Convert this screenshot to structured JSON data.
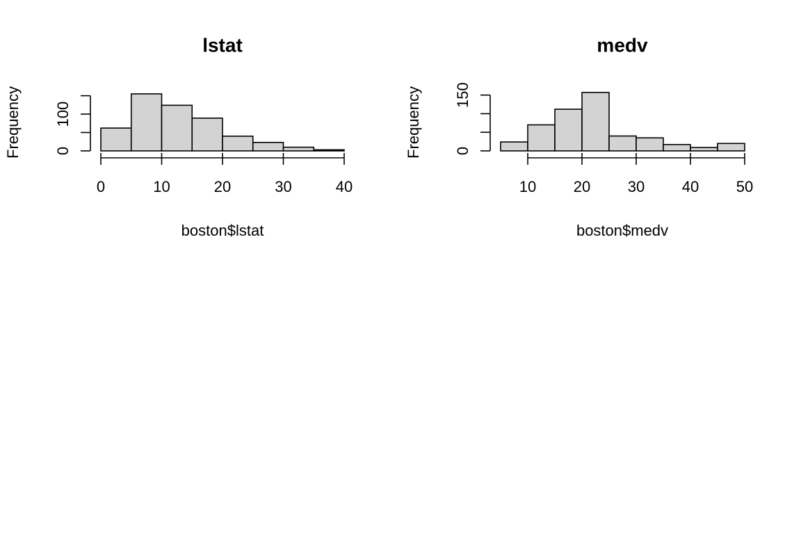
{
  "chart_data": [
    {
      "type": "bar",
      "title": "lstat",
      "xlabel": "boston$lstat",
      "ylabel": "Frequency",
      "bins": [
        {
          "from": 0,
          "to": 5,
          "count": 62
        },
        {
          "from": 5,
          "to": 10,
          "count": 155
        },
        {
          "from": 10,
          "to": 15,
          "count": 124
        },
        {
          "from": 15,
          "to": 20,
          "count": 89
        },
        {
          "from": 20,
          "to": 25,
          "count": 40
        },
        {
          "from": 25,
          "to": 30,
          "count": 23
        },
        {
          "from": 30,
          "to": 35,
          "count": 10
        },
        {
          "from": 35,
          "to": 40,
          "count": 3
        }
      ],
      "xlim": [
        0,
        40
      ],
      "ylim": [
        0,
        155
      ],
      "x_ticks": [
        0,
        10,
        20,
        30,
        40
      ],
      "x_tick_labels": [
        "0",
        "10",
        "20",
        "30",
        "40"
      ],
      "y_ticks": [
        0,
        50,
        100,
        150
      ],
      "y_tick_labels": [
        "0",
        "",
        "100",
        ""
      ],
      "bar_fill": "#d3d3d3",
      "grid": false
    },
    {
      "type": "bar",
      "title": "medv",
      "xlabel": "boston$medv",
      "ylabel": "Frequency",
      "bins": [
        {
          "from": 5,
          "to": 10,
          "count": 24
        },
        {
          "from": 10,
          "to": 15,
          "count": 70
        },
        {
          "from": 15,
          "to": 20,
          "count": 112
        },
        {
          "from": 20,
          "to": 25,
          "count": 157
        },
        {
          "from": 25,
          "to": 30,
          "count": 40
        },
        {
          "from": 30,
          "to": 35,
          "count": 35
        },
        {
          "from": 35,
          "to": 40,
          "count": 17
        },
        {
          "from": 40,
          "to": 45,
          "count": 9
        },
        {
          "from": 45,
          "to": 50,
          "count": 20
        }
      ],
      "xlim": [
        5,
        50
      ],
      "ylim": [
        0,
        157
      ],
      "x_ticks": [
        10,
        20,
        30,
        40,
        50
      ],
      "x_tick_labels": [
        "10",
        "20",
        "30",
        "40",
        "50"
      ],
      "y_ticks": [
        0,
        50,
        100,
        150
      ],
      "y_tick_labels": [
        "0",
        "",
        "",
        "150"
      ],
      "bar_fill": "#d3d3d3",
      "grid": false
    }
  ]
}
